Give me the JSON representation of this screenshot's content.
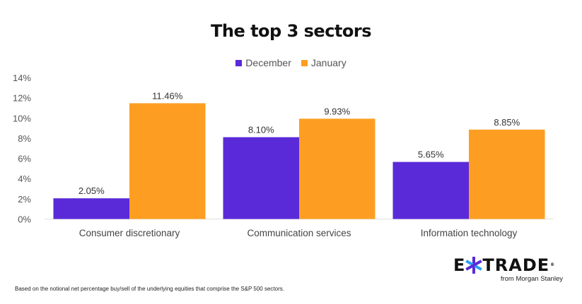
{
  "chart_data": {
    "type": "bar",
    "title": "The top 3 sectors",
    "categories": [
      "Consumer discretionary",
      "Communication services",
      "Information technology"
    ],
    "series": [
      {
        "name": "December",
        "color": "#5a2ad8",
        "values": [
          2.05,
          8.1,
          5.65
        ],
        "labels": [
          "2.05%",
          "8.10%",
          "5.65%"
        ]
      },
      {
        "name": "January",
        "color": "#fd9e22",
        "values": [
          11.46,
          9.93,
          8.85
        ],
        "labels": [
          "11.46%",
          "9.93%",
          "8.85%"
        ]
      }
    ],
    "xlabel": "",
    "ylabel": "",
    "ylim": [
      0,
      14
    ],
    "yticks": [
      0,
      2,
      4,
      6,
      8,
      10,
      12,
      14
    ],
    "ytick_labels": [
      "0%",
      "2%",
      "4%",
      "6%",
      "8%",
      "10%",
      "12%",
      "14%"
    ],
    "legend_position": "top-center",
    "grid": false
  },
  "footnote": "Based on the notional net percentage buy/sell of the underlying equities that comprise the S&P 500 sectors.",
  "logo": {
    "text_left": "E",
    "text_right": "TRADE",
    "registered": "®",
    "subtitle": "from Morgan Stanley"
  }
}
